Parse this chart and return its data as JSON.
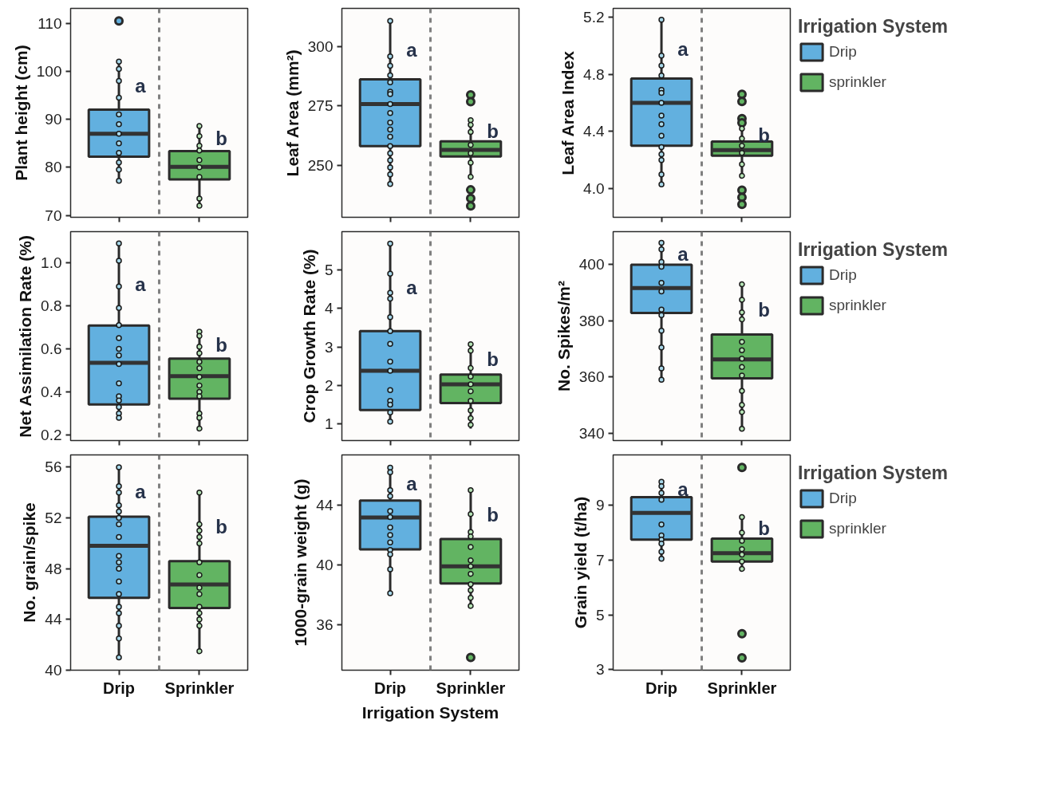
{
  "chart_data": [
    {
      "type": "box",
      "categories": [
        "Drip",
        "Sprinkler"
      ],
      "ylabel": "Plant height (cm)",
      "ylim": [
        69.6,
        113.1
      ],
      "yticks": [
        70,
        80,
        90,
        100,
        110
      ],
      "tick_labels": "y",
      "annotations": [
        "a",
        "b"
      ],
      "series": [
        {
          "color": "#62b0df",
          "boxes": [
            {
              "low": 77.2,
              "q1": 82.2,
              "median": 87,
              "q3": 92,
              "high": 102,
              "outliers": [
                110.5
              ]
            },
            null
          ]
        },
        {
          "color": "#62b462",
          "boxes": [
            null,
            {
              "low": 72,
              "q1": 77.5,
              "median": 80.1,
              "q3": 83.4,
              "high": 88.6
            }
          ]
        },
        {
          "type": "scatter",
          "color": "#a8d8ea",
          "x": [
            "Drip",
            "Drip",
            "Drip",
            "Drip",
            "Drip",
            "Drip",
            "Drip",
            "Drip",
            "Drip",
            "Drip",
            "Drip",
            "Drip"
          ],
          "values": [
            102,
            100.5,
            98,
            94.5,
            91,
            89,
            87,
            85,
            83,
            81,
            79.5,
            77.2
          ]
        },
        {
          "type": "scatter",
          "color": "#b5e3b5",
          "x": [
            "Sprinkler",
            "Sprinkler",
            "Sprinkler",
            "Sprinkler",
            "Sprinkler",
            "Sprinkler",
            "Sprinkler",
            "Sprinkler",
            "Sprinkler"
          ],
          "values": [
            88.6,
            86.5,
            84.5,
            83.5,
            81.5,
            80,
            78,
            73.5,
            72
          ]
        }
      ]
    },
    {
      "type": "box",
      "categories": [
        "Drip",
        "Sprinkler"
      ],
      "ylabel": "Leaf Area (mm²)",
      "ylim": [
        227.9,
        316.3
      ],
      "yticks": [
        250,
        275,
        300
      ],
      "tick_labels": "y",
      "annotations": [
        "a",
        "b"
      ],
      "series": [
        {
          "color": "#62b0df",
          "boxes": [
            {
              "low": 242,
              "q1": 258,
              "median": 275.8,
              "q3": 286.3,
              "high": 311.2
            },
            null
          ]
        },
        {
          "color": "#62b462",
          "boxes": [
            null,
            {
              "low": 245,
              "q1": 253.6,
              "median": 256.4,
              "q3": 260,
              "high": 269,
              "outliers": [
                279.7,
                276.8,
                239.5,
                235.9,
                232.7
              ]
            }
          ]
        },
        {
          "type": "scatter",
          "color": "#a8d8ea",
          "x": [
            "Drip",
            "Drip",
            "Drip",
            "Drip",
            "Drip",
            "Drip",
            "Drip",
            "Drip",
            "Drip",
            "Drip",
            "Drip",
            "Drip",
            "Drip",
            "Drip",
            "Drip",
            "Drip",
            "Drip",
            "Drip"
          ],
          "values": [
            311,
            296,
            292,
            288,
            285,
            281,
            280,
            275.8,
            272,
            268,
            265,
            262,
            258,
            255,
            252,
            249,
            246,
            242
          ]
        },
        {
          "type": "scatter",
          "color": "#b5e3b5",
          "x": [
            "Sprinkler",
            "Sprinkler",
            "Sprinkler",
            "Sprinkler",
            "Sprinkler",
            "Sprinkler",
            "Sprinkler"
          ],
          "values": [
            269,
            267,
            264,
            258.5,
            255,
            251,
            245
          ]
        }
      ]
    },
    {
      "type": "box",
      "categories": [
        "Drip",
        "Sprinkler"
      ],
      "ylabel": "Leaf Area Index",
      "ylim": [
        3.8,
        5.26
      ],
      "yticks": [
        {
          "value": 4,
          "label": "4.0"
        },
        4.4,
        4.8,
        5.2
      ],
      "tick_labels": "y",
      "legend": "right",
      "legend_title": "Irrigation System",
      "annotations": [
        "a",
        "b"
      ],
      "series": [
        {
          "name": "Drip",
          "color": "#62b0df",
          "boxes": [
            {
              "low": 4.03,
              "q1": 4.3,
              "median": 4.6,
              "q3": 4.77,
              "high": 5.18
            },
            null
          ]
        },
        {
          "name": "sprinkler",
          "color": "#62b462",
          "boxes": [
            null,
            {
              "low": 4.09,
              "q1": 4.23,
              "median": 4.27,
              "q3": 4.33,
              "high": 4.42,
              "outliers": [
                4.66,
                4.61,
                4.49,
                4.46,
                3.99,
                3.94,
                3.89
              ]
            }
          ]
        },
        {
          "type": "scatter",
          "color": "#a8d8ea",
          "x": [
            "Drip",
            "Drip",
            "Drip",
            "Drip",
            "Drip",
            "Drip",
            "Drip",
            "Drip",
            "Drip",
            "Drip",
            "Drip",
            "Drip",
            "Drip",
            "Drip",
            "Drip"
          ],
          "values": [
            5.18,
            4.93,
            4.86,
            4.79,
            4.69,
            4.67,
            4.6,
            4.51,
            4.45,
            4.37,
            4.29,
            4.24,
            4.2,
            4.1,
            4.03
          ]
        },
        {
          "type": "scatter",
          "color": "#b5e3b5",
          "x": [
            "Sprinkler",
            "Sprinkler",
            "Sprinkler",
            "Sprinkler",
            "Sprinkler",
            "Sprinkler"
          ],
          "values": [
            4.42,
            4.35,
            4.3,
            4.25,
            4.17,
            4.09
          ]
        }
      ]
    },
    {
      "type": "box",
      "categories": [
        "Drip",
        "Sprinkler"
      ],
      "ylabel": "Net Assimilation Rate (%)",
      "ylim": [
        0.174,
        1.145
      ],
      "yticks": [
        0.2,
        0.4,
        0.6,
        0.8,
        {
          "value": 1,
          "label": "1.0"
        }
      ],
      "tick_labels": "y",
      "annotations": [
        "a",
        "b"
      ],
      "series": [
        {
          "color": "#62b0df",
          "boxes": [
            {
              "low": 0.283,
              "q1": 0.342,
              "median": 0.535,
              "q3": 0.709,
              "high": 1.089
            },
            null
          ]
        },
        {
          "color": "#62b462",
          "boxes": [
            null,
            {
              "low": 0.226,
              "q1": 0.369,
              "median": 0.473,
              "q3": 0.555,
              "high": 0.683
            }
          ]
        },
        {
          "type": "scatter",
          "color": "#a8d8ea",
          "x": [
            "Drip",
            "Drip",
            "Drip",
            "Drip",
            "Drip",
            "Drip",
            "Drip",
            "Drip",
            "Drip",
            "Drip",
            "Drip",
            "Drip",
            "Drip",
            "Drip",
            "Drip"
          ],
          "values": [
            1.09,
            1.01,
            0.89,
            0.79,
            0.71,
            0.65,
            0.6,
            0.57,
            0.53,
            0.44,
            0.38,
            0.36,
            0.33,
            0.3,
            0.28
          ]
        },
        {
          "type": "scatter",
          "color": "#b5e3b5",
          "x": [
            "Sprinkler",
            "Sprinkler",
            "Sprinkler",
            "Sprinkler",
            "Sprinkler",
            "Sprinkler",
            "Sprinkler",
            "Sprinkler",
            "Sprinkler",
            "Sprinkler",
            "Sprinkler",
            "Sprinkler",
            "Sprinkler"
          ],
          "values": [
            0.68,
            0.66,
            0.61,
            0.58,
            0.54,
            0.51,
            0.47,
            0.43,
            0.4,
            0.38,
            0.3,
            0.28,
            0.23
          ]
        }
      ]
    },
    {
      "type": "box",
      "categories": [
        "Drip",
        "Sprinkler"
      ],
      "ylabel": "Crop Growth Rate (%)",
      "ylim": [
        0.57,
        5.99
      ],
      "yticks": [
        1,
        2,
        3,
        4,
        5
      ],
      "tick_labels": "y",
      "annotations": [
        "a",
        "b"
      ],
      "series": [
        {
          "color": "#62b0df",
          "boxes": [
            {
              "low": 1.06,
              "q1": 1.36,
              "median": 2.38,
              "q3": 3.41,
              "high": 5.68
            },
            null
          ]
        },
        {
          "color": "#62b462",
          "boxes": [
            null,
            {
              "low": 0.88,
              "q1": 1.54,
              "median": 2.03,
              "q3": 2.28,
              "high": 3.07
            }
          ]
        },
        {
          "type": "scatter",
          "color": "#a8d8ea",
          "x": [
            "Drip",
            "Drip",
            "Drip",
            "Drip",
            "Drip",
            "Drip",
            "Drip",
            "Drip",
            "Drip",
            "Drip",
            "Drip",
            "Drip",
            "Drip",
            "Drip"
          ],
          "values": [
            5.68,
            4.9,
            4.4,
            4.25,
            3.77,
            3.41,
            3.08,
            2.62,
            2.38,
            1.88,
            1.6,
            1.5,
            1.3,
            1.06
          ]
        },
        {
          "type": "scatter",
          "color": "#b5e3b5",
          "x": [
            "Sprinkler",
            "Sprinkler",
            "Sprinkler",
            "Sprinkler",
            "Sprinkler",
            "Sprinkler",
            "Sprinkler",
            "Sprinkler",
            "Sprinkler",
            "Sprinkler"
          ],
          "values": [
            3.07,
            2.9,
            2.45,
            2.23,
            2.03,
            1.85,
            1.6,
            1.35,
            1.15,
            0.98
          ]
        }
      ]
    },
    {
      "type": "box",
      "categories": [
        "Drip",
        "Sprinkler"
      ],
      "ylabel": "No. Spikes/m²",
      "ylim": [
        337.3,
        411.8
      ],
      "yticks": [
        340,
        360,
        380,
        400
      ],
      "tick_labels": "y",
      "legend": "right",
      "legend_title": "Irrigation System",
      "annotations": [
        "a",
        "b"
      ],
      "series": [
        {
          "name": "Drip",
          "color": "#62b0df",
          "boxes": [
            {
              "low": 359,
              "q1": 382.8,
              "median": 391.7,
              "q3": 400,
              "high": 407.8
            },
            null
          ]
        },
        {
          "name": "sprinkler",
          "color": "#62b462",
          "boxes": [
            null,
            {
              "low": 341.5,
              "q1": 359.5,
              "median": 366.2,
              "q3": 375.1,
              "high": 393
            }
          ]
        },
        {
          "type": "scatter",
          "color": "#a8d8ea",
          "x": [
            "Drip",
            "Drip",
            "Drip",
            "Drip",
            "Drip",
            "Drip",
            "Drip",
            "Drip",
            "Drip",
            "Drip",
            "Drip",
            "Drip"
          ],
          "values": [
            407.8,
            405.5,
            401,
            399.3,
            393.5,
            390.5,
            384,
            382,
            376.5,
            370.5,
            363,
            359
          ]
        },
        {
          "type": "scatter",
          "color": "#b5e3b5",
          "x": [
            "Sprinkler",
            "Sprinkler",
            "Sprinkler",
            "Sprinkler",
            "Sprinkler",
            "Sprinkler",
            "Sprinkler",
            "Sprinkler",
            "Sprinkler",
            "Sprinkler",
            "Sprinkler",
            "Sprinkler",
            "Sprinkler"
          ],
          "values": [
            393,
            387.5,
            383,
            380.5,
            372.5,
            369.5,
            366.5,
            363.5,
            360.5,
            355,
            350,
            347.5,
            341.5
          ]
        }
      ]
    },
    {
      "type": "box",
      "categories": [
        "Drip",
        "Sprinkler"
      ],
      "ylabel": "No. grain/spike",
      "ylim": [
        40,
        56.97
      ],
      "yticks": [
        40,
        44,
        48,
        52,
        56
      ],
      "annotations": [
        "a",
        "b"
      ],
      "series": [
        {
          "color": "#62b0df",
          "boxes": [
            {
              "low": 41,
              "q1": 45.7,
              "median": 49.8,
              "q3": 52.1,
              "high": 56
            },
            null
          ]
        },
        {
          "color": "#62b462",
          "boxes": [
            null,
            {
              "low": 41.5,
              "q1": 44.9,
              "median": 46.75,
              "q3": 48.6,
              "high": 54
            }
          ]
        },
        {
          "type": "scatter",
          "color": "#a8d8ea",
          "x": [
            "Drip",
            "Drip",
            "Drip",
            "Drip",
            "Drip",
            "Drip",
            "Drip",
            "Drip",
            "Drip",
            "Drip",
            "Drip",
            "Drip",
            "Drip",
            "Drip",
            "Drip",
            "Drip",
            "Drip",
            "Drip"
          ],
          "values": [
            56,
            54.5,
            54,
            53,
            52.5,
            52,
            51.5,
            50.5,
            49,
            48.5,
            48,
            47,
            46,
            45,
            44.5,
            43.5,
            42.5,
            41
          ]
        },
        {
          "type": "scatter",
          "color": "#b5e3b5",
          "x": [
            "Sprinkler",
            "Sprinkler",
            "Sprinkler",
            "Sprinkler",
            "Sprinkler",
            "Sprinkler",
            "Sprinkler",
            "Sprinkler",
            "Sprinkler",
            "Sprinkler",
            "Sprinkler",
            "Sprinkler",
            "Sprinkler",
            "Sprinkler"
          ],
          "values": [
            54,
            51.5,
            51,
            50.5,
            50,
            48.5,
            47.5,
            46.5,
            46,
            45,
            44.5,
            44,
            43.5,
            41.5
          ]
        }
      ]
    },
    {
      "type": "box",
      "categories": [
        "Drip",
        "Sprinkler"
      ],
      "ylabel": "1000-grain weight (g)",
      "xlabel": "Irrigation System",
      "ylim": [
        32.95,
        47.36
      ],
      "yticks": [
        36,
        40,
        44
      ],
      "annotations": [
        "a",
        "b"
      ],
      "series": [
        {
          "color": "#62b0df",
          "boxes": [
            {
              "low": 38.13,
              "q1": 41.04,
              "median": 43.17,
              "q3": 44.3,
              "high": 46.53
            },
            null
          ]
        },
        {
          "color": "#62b462",
          "boxes": [
            null,
            {
              "low": 37.25,
              "q1": 38.75,
              "median": 39.9,
              "q3": 41.73,
              "high": 45,
              "outliers": [
                33.8
              ]
            }
          ]
        },
        {
          "type": "scatter",
          "color": "#a8d8ea",
          "x": [
            "Drip",
            "Drip",
            "Drip",
            "Drip",
            "Drip",
            "Drip",
            "Drip",
            "Drip",
            "Drip",
            "Drip",
            "Drip",
            "Drip",
            "Drip"
          ],
          "values": [
            46.5,
            46.2,
            45,
            44.6,
            43.6,
            43.2,
            42.5,
            42,
            41.5,
            41,
            40.7,
            39.7,
            38.1
          ]
        },
        {
          "type": "scatter",
          "color": "#b5e3b5",
          "x": [
            "Sprinkler",
            "Sprinkler",
            "Sprinkler",
            "Sprinkler",
            "Sprinkler",
            "Sprinkler",
            "Sprinkler",
            "Sprinkler",
            "Sprinkler",
            "Sprinkler",
            "Sprinkler",
            "Sprinkler"
          ],
          "values": [
            45,
            43.4,
            42.2,
            41.9,
            41.2,
            40.3,
            39.9,
            39.4,
            38.7,
            38.3,
            37.8,
            37.25
          ]
        }
      ]
    },
    {
      "type": "box",
      "categories": [
        "Drip",
        "Sprinkler"
      ],
      "ylabel": "Grain yield (t/ha)",
      "ylim": [
        2.98,
        10.84
      ],
      "yticks": [
        3,
        5,
        7,
        9
      ],
      "legend": "right",
      "legend_title": "Irrigation System",
      "annotations": [
        "a",
        "b"
      ],
      "series": [
        {
          "name": "Drip",
          "color": "#62b0df",
          "boxes": [
            {
              "low": 7.05,
              "q1": 7.75,
              "median": 8.72,
              "q3": 9.3,
              "high": 9.86
            },
            null
          ]
        },
        {
          "name": "sprinkler",
          "color": "#62b462",
          "boxes": [
            null,
            {
              "low": 6.68,
              "q1": 6.95,
              "median": 7.25,
              "q3": 7.78,
              "high": 8.57,
              "outliers": [
                10.38,
                4.31,
                3.43
              ]
            }
          ]
        },
        {
          "type": "scatter",
          "color": "#a8d8ea",
          "x": [
            "Drip",
            "Drip",
            "Drip",
            "Drip",
            "Drip",
            "Drip",
            "Drip",
            "Drip",
            "Drip",
            "Drip"
          ],
          "values": [
            9.86,
            9.7,
            9.45,
            9.2,
            8.3,
            7.9,
            7.75,
            7.6,
            7.3,
            7.05
          ]
        },
        {
          "type": "scatter",
          "color": "#b5e3b5",
          "x": [
            "Sprinkler",
            "Sprinkler",
            "Sprinkler",
            "Sprinkler",
            "Sprinkler",
            "Sprinkler",
            "Sprinkler"
          ],
          "values": [
            8.57,
            8.0,
            7.7,
            7.4,
            7.2,
            6.95,
            6.68
          ]
        }
      ]
    }
  ]
}
